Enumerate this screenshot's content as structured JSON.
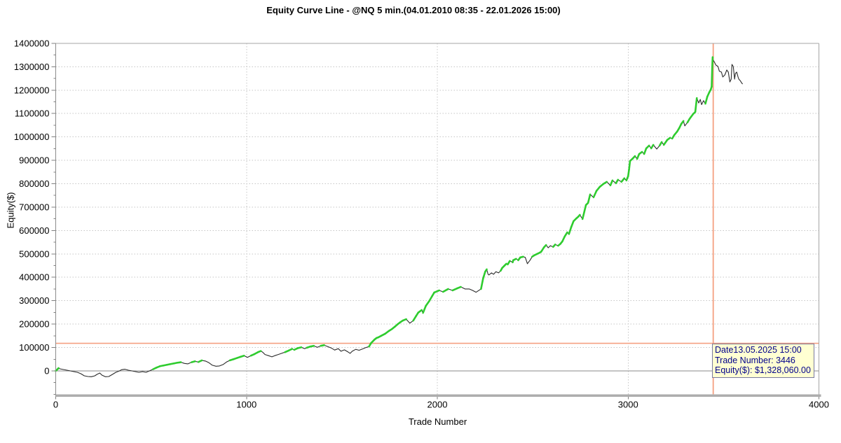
{
  "tooltip": {
    "date_line": "Date13.05.2025 15:00",
    "trade_line": "Trade Number: 3446",
    "equity_line": "Equity($): $1,328,060.00",
    "bg_color": "#FFFFD2",
    "text_color": "#00008B"
  },
  "crosshair": {
    "trade": 3446,
    "equity_level": 118000,
    "color": "#F5A081"
  },
  "colors": {
    "curve": "#2b2b2b",
    "new_high_green": "#2ECC2E",
    "grid": "#C6C6C6",
    "zero_line": "#8A8A8A",
    "border": "#A5A5A5",
    "bottom_band": "#ADADAD",
    "tick": "#7F7F7F",
    "label": "#000000"
  },
  "chart_data": {
    "type": "line",
    "title": "Equity Curve Line - @NQ 5 min.(04.01.2010 08:35 - 22.01.2026 15:00)",
    "xlabel": "Trade Number",
    "ylabel": "Equity($)",
    "xlim": [
      0,
      4000
    ],
    "ylim": [
      -100000,
      1400000
    ],
    "x_ticks": [
      0,
      1000,
      2000,
      3000,
      4000
    ],
    "y_ticks": [
      0,
      100000,
      200000,
      300000,
      400000,
      500000,
      600000,
      700000,
      800000,
      900000,
      1000000,
      1100000,
      1200000,
      1300000,
      1400000
    ],
    "y_minor_step": 50000,
    "grid": "dotted major gridlines",
    "legend": "none",
    "color_rule": "segment drawn green when equity makes a new all-time high, otherwise black",
    "highlight_point": {
      "trade": 3446,
      "equity": 1328060
    },
    "series": [
      {
        "name": "Equity",
        "points": [
          [
            0,
            0
          ],
          [
            8,
            6000
          ],
          [
            15,
            12000
          ],
          [
            22,
            9000
          ],
          [
            40,
            6000
          ],
          [
            59,
            3000
          ],
          [
            77,
            0
          ],
          [
            95,
            -3000
          ],
          [
            114,
            -6000
          ],
          [
            132,
            -12000
          ],
          [
            150,
            -21000
          ],
          [
            169,
            -24000
          ],
          [
            187,
            -25000
          ],
          [
            205,
            -21000
          ],
          [
            216,
            -15000
          ],
          [
            231,
            -9000
          ],
          [
            242,
            -18000
          ],
          [
            260,
            -25000
          ],
          [
            278,
            -24000
          ],
          [
            297,
            -15000
          ],
          [
            315,
            -6000
          ],
          [
            334,
            0
          ],
          [
            345,
            5000
          ],
          [
            363,
            7000
          ],
          [
            381,
            3000
          ],
          [
            400,
            0
          ],
          [
            418,
            -3000
          ],
          [
            436,
            -6000
          ],
          [
            455,
            -3000
          ],
          [
            473,
            -6000
          ],
          [
            491,
            0
          ],
          [
            510,
            7000
          ],
          [
            528,
            14000
          ],
          [
            546,
            20000
          ],
          [
            565,
            23000
          ],
          [
            583,
            26000
          ],
          [
            601,
            29000
          ],
          [
            620,
            32000
          ],
          [
            638,
            35000
          ],
          [
            656,
            37000
          ],
          [
            675,
            32000
          ],
          [
            693,
            30000
          ],
          [
            712,
            37000
          ],
          [
            730,
            41000
          ],
          [
            748,
            38000
          ],
          [
            766,
            45000
          ],
          [
            785,
            42000
          ],
          [
            803,
            35000
          ],
          [
            821,
            24000
          ],
          [
            840,
            20000
          ],
          [
            858,
            21000
          ],
          [
            877,
            27000
          ],
          [
            895,
            38000
          ],
          [
            913,
            45000
          ],
          [
            932,
            50000
          ],
          [
            950,
            55000
          ],
          [
            968,
            60000
          ],
          [
            987,
            65000
          ],
          [
            1005,
            58000
          ],
          [
            1023,
            65000
          ],
          [
            1042,
            72000
          ],
          [
            1060,
            80000
          ],
          [
            1075,
            85000
          ],
          [
            1086,
            79000
          ],
          [
            1097,
            70000
          ],
          [
            1115,
            65000
          ],
          [
            1133,
            60000
          ],
          [
            1148,
            65000
          ],
          [
            1166,
            70000
          ],
          [
            1184,
            75000
          ],
          [
            1202,
            80000
          ],
          [
            1221,
            87000
          ],
          [
            1239,
            94000
          ],
          [
            1250,
            90000
          ],
          [
            1268,
            97000
          ],
          [
            1287,
            101000
          ],
          [
            1305,
            95000
          ],
          [
            1316,
            99000
          ],
          [
            1334,
            104000
          ],
          [
            1353,
            107000
          ],
          [
            1371,
            101000
          ],
          [
            1389,
            107000
          ],
          [
            1407,
            110000
          ],
          [
            1426,
            104000
          ],
          [
            1444,
            98000
          ],
          [
            1462,
            89000
          ],
          [
            1481,
            95000
          ],
          [
            1495,
            84000
          ],
          [
            1513,
            90000
          ],
          [
            1532,
            81000
          ],
          [
            1543,
            75000
          ],
          [
            1554,
            84000
          ],
          [
            1572,
            92000
          ],
          [
            1590,
            88000
          ],
          [
            1609,
            94000
          ],
          [
            1623,
            99000
          ],
          [
            1642,
            104000
          ],
          [
            1653,
            119000
          ],
          [
            1671,
            134000
          ],
          [
            1682,
            141000
          ],
          [
            1690,
            143000
          ],
          [
            1706,
            150000
          ],
          [
            1727,
            159000
          ],
          [
            1745,
            170000
          ],
          [
            1764,
            180000
          ],
          [
            1779,
            190000
          ],
          [
            1793,
            200000
          ],
          [
            1806,
            208000
          ],
          [
            1819,
            215000
          ],
          [
            1837,
            221000
          ],
          [
            1849,
            210000
          ],
          [
            1856,
            204000
          ],
          [
            1874,
            215000
          ],
          [
            1889,
            235000
          ],
          [
            1900,
            249000
          ],
          [
            1918,
            260000
          ],
          [
            1925,
            248000
          ],
          [
            1940,
            278000
          ],
          [
            1958,
            299000
          ],
          [
            1973,
            320000
          ],
          [
            1984,
            335000
          ],
          [
            2010,
            344000
          ],
          [
            2030,
            338000
          ],
          [
            2057,
            350000
          ],
          [
            2080,
            344000
          ],
          [
            2105,
            353000
          ],
          [
            2123,
            359000
          ],
          [
            2145,
            350000
          ],
          [
            2167,
            350000
          ],
          [
            2185,
            344000
          ],
          [
            2203,
            336000
          ],
          [
            2229,
            350000
          ],
          [
            2240,
            395000
          ],
          [
            2251,
            424000
          ],
          [
            2259,
            434000
          ],
          [
            2266,
            413000
          ],
          [
            2270,
            410000
          ],
          [
            2284,
            419000
          ],
          [
            2295,
            413000
          ],
          [
            2307,
            424000
          ],
          [
            2321,
            419000
          ],
          [
            2332,
            428000
          ],
          [
            2340,
            440000
          ],
          [
            2351,
            449000
          ],
          [
            2362,
            458000
          ],
          [
            2369,
            455000
          ],
          [
            2380,
            470000
          ],
          [
            2395,
            464000
          ],
          [
            2398,
            473000
          ],
          [
            2413,
            479000
          ],
          [
            2424,
            473000
          ],
          [
            2435,
            485000
          ],
          [
            2450,
            488000
          ],
          [
            2461,
            485000
          ],
          [
            2472,
            458000
          ],
          [
            2486,
            473000
          ],
          [
            2497,
            488000
          ],
          [
            2508,
            494000
          ],
          [
            2523,
            500000
          ],
          [
            2536,
            505000
          ],
          [
            2544,
            509000
          ],
          [
            2559,
            528000
          ],
          [
            2570,
            538000
          ],
          [
            2581,
            526000
          ],
          [
            2592,
            535000
          ],
          [
            2607,
            530000
          ],
          [
            2618,
            540000
          ],
          [
            2633,
            535000
          ],
          [
            2644,
            542000
          ],
          [
            2655,
            553000
          ],
          [
            2668,
            575000
          ],
          [
            2681,
            592000
          ],
          [
            2690,
            585000
          ],
          [
            2702,
            615000
          ],
          [
            2714,
            640000
          ],
          [
            2729,
            652000
          ],
          [
            2740,
            660000
          ],
          [
            2747,
            667000
          ],
          [
            2761,
            649000
          ],
          [
            2779,
            709000
          ],
          [
            2790,
            718000
          ],
          [
            2801,
            754000
          ],
          [
            2819,
            742000
          ],
          [
            2834,
            769000
          ],
          [
            2852,
            787000
          ],
          [
            2870,
            799000
          ],
          [
            2888,
            808000
          ],
          [
            2907,
            793000
          ],
          [
            2918,
            814000
          ],
          [
            2936,
            802000
          ],
          [
            2947,
            817000
          ],
          [
            2965,
            808000
          ],
          [
            2980,
            823000
          ],
          [
            2991,
            814000
          ],
          [
            3000,
            832000
          ],
          [
            3005,
            861000
          ],
          [
            3010,
            897000
          ],
          [
            3022,
            906000
          ],
          [
            3036,
            918000
          ],
          [
            3047,
            906000
          ],
          [
            3058,
            927000
          ],
          [
            3073,
            936000
          ],
          [
            3084,
            927000
          ],
          [
            3095,
            951000
          ],
          [
            3110,
            963000
          ],
          [
            3121,
            951000
          ],
          [
            3132,
            966000
          ],
          [
            3150,
            948000
          ],
          [
            3165,
            963000
          ],
          [
            3176,
            978000
          ],
          [
            3187,
            966000
          ],
          [
            3205,
            987000
          ],
          [
            3220,
            996000
          ],
          [
            3231,
            993000
          ],
          [
            3242,
            1008000
          ],
          [
            3257,
            1023000
          ],
          [
            3268,
            1038000
          ],
          [
            3279,
            1056000
          ],
          [
            3290,
            1068000
          ],
          [
            3297,
            1047000
          ],
          [
            3311,
            1062000
          ],
          [
            3322,
            1077000
          ],
          [
            3330,
            1086000
          ],
          [
            3341,
            1098000
          ],
          [
            3352,
            1107000
          ],
          [
            3360,
            1166000
          ],
          [
            3370,
            1145000
          ],
          [
            3378,
            1160000
          ],
          [
            3385,
            1138000
          ],
          [
            3395,
            1155000
          ],
          [
            3405,
            1142000
          ],
          [
            3415,
            1172000
          ],
          [
            3425,
            1190000
          ],
          [
            3433,
            1202000
          ],
          [
            3438,
            1215000
          ],
          [
            3441,
            1300000
          ],
          [
            3443,
            1341000
          ],
          [
            3446,
            1328060
          ],
          [
            3452,
            1320000
          ],
          [
            3460,
            1307000
          ],
          [
            3471,
            1301000
          ],
          [
            3478,
            1281000
          ],
          [
            3489,
            1277000
          ],
          [
            3496,
            1256000
          ],
          [
            3507,
            1265000
          ],
          [
            3517,
            1286000
          ],
          [
            3525,
            1277000
          ],
          [
            3533,
            1235000
          ],
          [
            3540,
            1247000
          ],
          [
            3544,
            1310000
          ],
          [
            3551,
            1301000
          ],
          [
            3558,
            1247000
          ],
          [
            3562,
            1271000
          ],
          [
            3569,
            1277000
          ],
          [
            3576,
            1256000
          ],
          [
            3580,
            1247000
          ],
          [
            3587,
            1241000
          ],
          [
            3594,
            1232000
          ],
          [
            3600,
            1226000
          ]
        ]
      }
    ]
  }
}
